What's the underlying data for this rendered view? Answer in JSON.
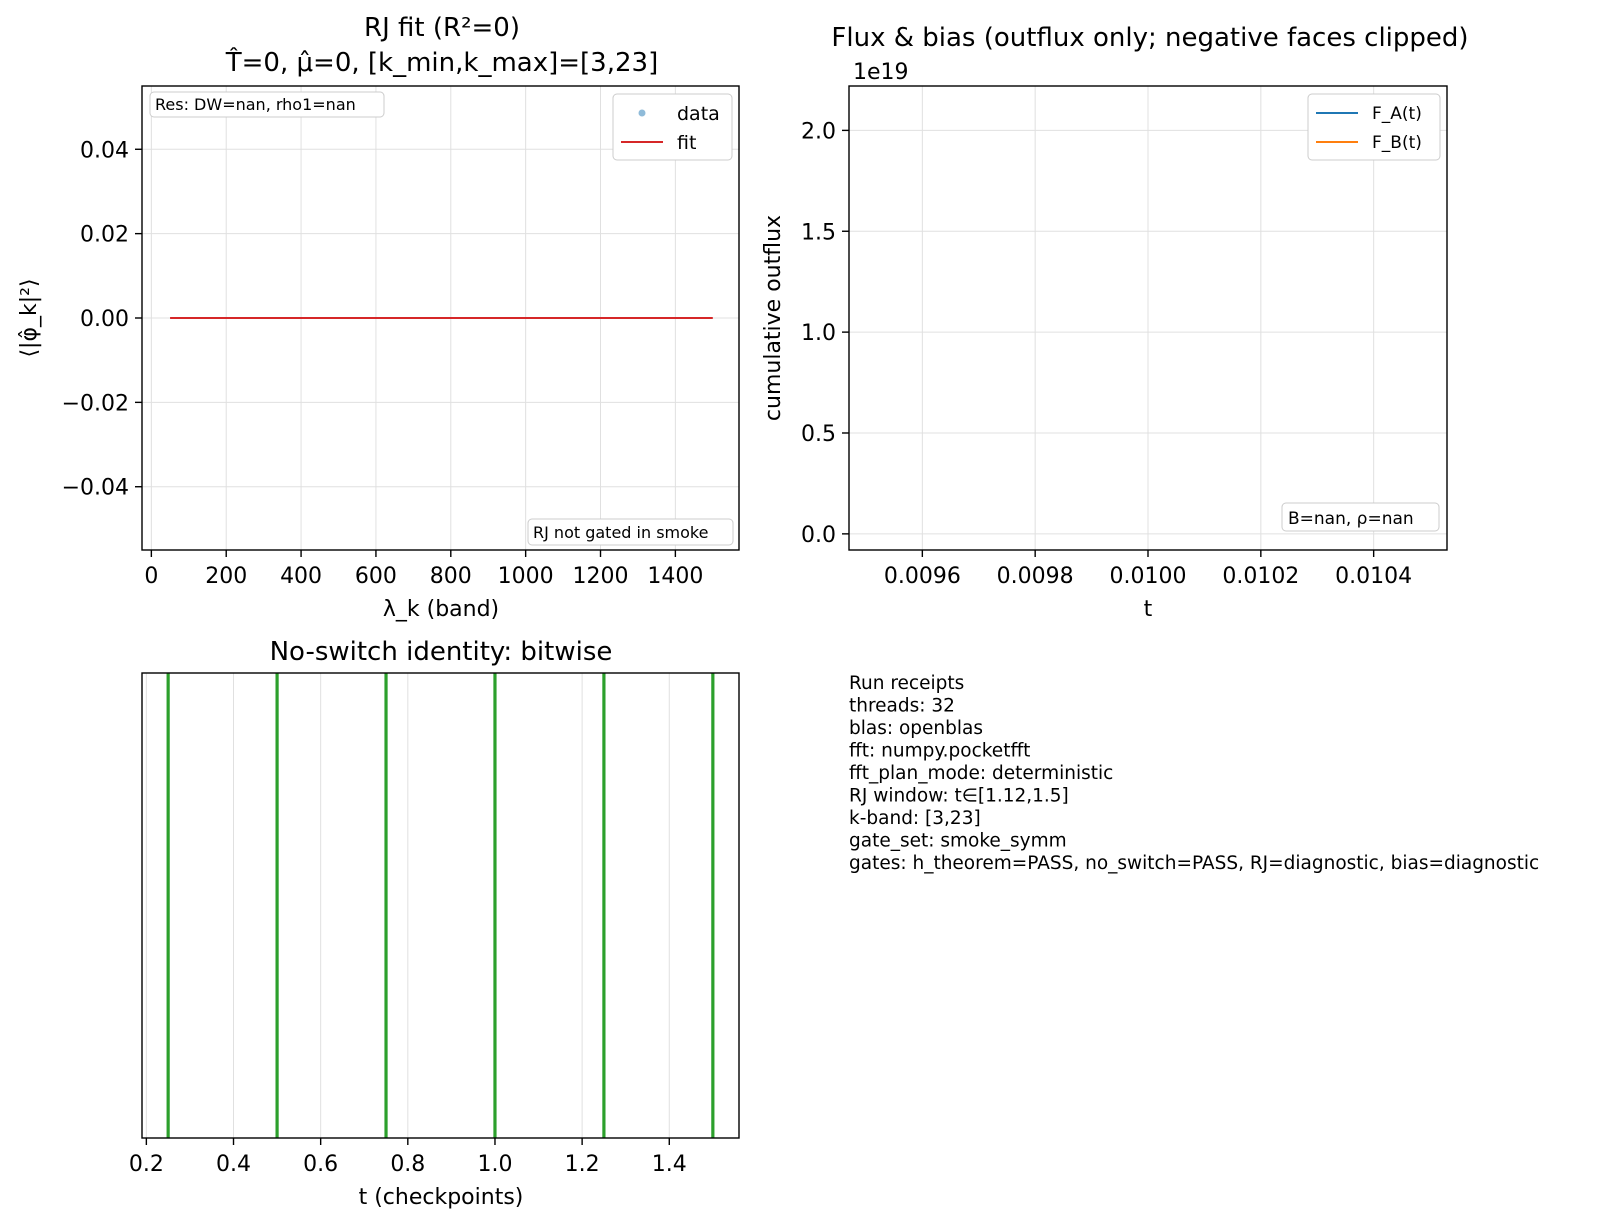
{
  "chart_data": [
    {
      "type": "line",
      "title_line1": "RJ fit (R²=0)",
      "title_line2": "T̂=0, μ̂=0, [k_min,k_max]=[3,23]",
      "xlabel": "λ_k (band)",
      "ylabel": "⟨|φ̂_k|²⟩",
      "xlim": [
        -25,
        1570
      ],
      "ylim": [
        -0.055,
        0.055
      ],
      "xticks": [
        0,
        200,
        400,
        600,
        800,
        1000,
        1200,
        1400
      ],
      "xtick_labels": [
        "0",
        "200",
        "400",
        "600",
        "800",
        "1000",
        "1200",
        "1400"
      ],
      "yticks": [
        0.04,
        0.02,
        0.0,
        -0.02,
        -0.04
      ],
      "ytick_labels": [
        "0.04",
        "0.02",
        "0.00",
        "−0.02",
        "−0.04"
      ],
      "grid": true,
      "legend_position": "upper right",
      "series": [
        {
          "name": "data",
          "kind": "scatter",
          "color": "#1f77b4",
          "x": [],
          "y": []
        },
        {
          "name": "fit",
          "kind": "line",
          "color": "#d62728",
          "x": [
            50,
            1500
          ],
          "y": [
            0,
            0
          ]
        }
      ],
      "annotation_topleft": "Res: DW=nan, rho1=nan",
      "annotation_bottomright": "RJ not gated in smoke"
    },
    {
      "type": "line",
      "title": "Flux & bias (outflux only; negative faces clipped)",
      "xlabel": "t",
      "ylabel": "cumulative outflux",
      "y_offset_label": "1e19",
      "xlim": [
        0.00947,
        0.01053
      ],
      "ylim": [
        -0.08,
        2.22
      ],
      "xticks": [
        0.0096,
        0.0098,
        0.01,
        0.0102,
        0.0104
      ],
      "xtick_labels": [
        "0.0096",
        "0.0098",
        "0.0100",
        "0.0102",
        "0.0104"
      ],
      "yticks": [
        0.0,
        0.5,
        1.0,
        1.5,
        2.0
      ],
      "ytick_labels": [
        "0.0",
        "0.5",
        "1.0",
        "1.5",
        "2.0"
      ],
      "grid": true,
      "legend_position": "upper right",
      "series": [
        {
          "name": "F_A(t)",
          "color": "#1f77b4",
          "x": [],
          "y": []
        },
        {
          "name": "F_B(t)",
          "color": "#ff7f0e",
          "x": [],
          "y": []
        }
      ],
      "annotation_bottomright": "B=nan, ρ=nan"
    },
    {
      "type": "line",
      "title": "No-switch identity: bitwise",
      "xlabel": "t (checkpoints)",
      "xlim": [
        0.19,
        1.56
      ],
      "xticks": [
        0.2,
        0.4,
        0.6,
        0.8,
        1.0,
        1.2,
        1.4
      ],
      "xtick_labels": [
        "0.2",
        "0.4",
        "0.6",
        "0.8",
        "1.0",
        "1.2",
        "1.4"
      ],
      "grid": true,
      "checkpoint_color": "#2ca02c",
      "checkpoints": [
        0.25,
        0.5,
        0.75,
        1.0,
        1.25,
        1.5
      ]
    }
  ],
  "receipts": {
    "lines": [
      "Run receipts",
      "threads: 32",
      "blas: openblas",
      "fft: numpy.pocketfft",
      "fft_plan_mode: deterministic",
      "RJ window: t∈[1.12,1.5]",
      "k-band: [3,23]",
      "gate_set: smoke_symm",
      "gates: h_theorem=PASS, no_switch=PASS, RJ=diagnostic, bias=diagnostic"
    ]
  }
}
